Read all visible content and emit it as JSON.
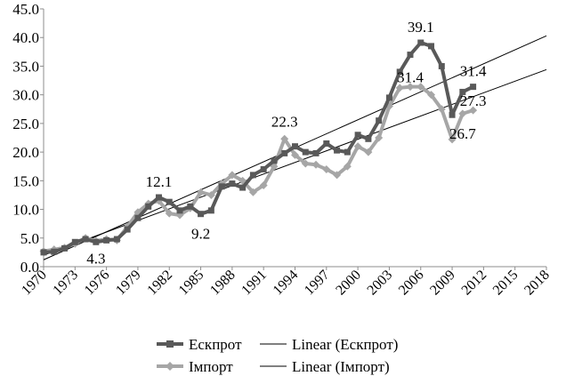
{
  "chart_data": {
    "type": "line",
    "x": [
      1970,
      1971,
      1972,
      1973,
      1974,
      1975,
      1976,
      1977,
      1978,
      1979,
      1980,
      1981,
      1982,
      1983,
      1984,
      1985,
      1986,
      1987,
      1988,
      1989,
      1990,
      1991,
      1992,
      1993,
      1994,
      1995,
      1996,
      1997,
      1998,
      1999,
      2000,
      2001,
      2002,
      2003,
      2004,
      2005,
      2006,
      2007,
      2008,
      2009,
      2010,
      2011
    ],
    "xlim": [
      1970,
      2018
    ],
    "x_ticks": [
      "1970",
      "1973",
      "1976",
      "1979",
      "1982",
      "1985",
      "1988",
      "1991",
      "1994",
      "1997",
      "2000",
      "2003",
      "2006",
      "2009",
      "2012",
      "2015",
      "2018"
    ],
    "ylim": [
      0,
      45
    ],
    "y_ticks": [
      "0.0",
      "5.0",
      "10.0",
      "15.0",
      "20.0",
      "25.0",
      "30.0",
      "35.0",
      "40.0",
      "45.0"
    ],
    "grid": false,
    "legend_position": "bottom",
    "series": [
      {
        "name": "Ескпрот",
        "color": "#595959",
        "marker": "square",
        "values": [
          2.5,
          2.6,
          3.2,
          4.3,
          4.8,
          4.3,
          4.6,
          4.8,
          6.5,
          8.5,
          10.5,
          12.1,
          11.3,
          9.8,
          10.5,
          9.2,
          9.8,
          14.0,
          14.5,
          13.8,
          16.0,
          17.0,
          18.5,
          19.8,
          21.0,
          20.0,
          19.8,
          21.5,
          20.3,
          20.0,
          23.0,
          22.3,
          25.5,
          29.5,
          34.0,
          37.0,
          39.1,
          38.5,
          35.0,
          26.5,
          30.5,
          31.4
        ]
      },
      {
        "name": "Імпорт",
        "color": "#a6a6a6",
        "marker": "diamond",
        "values": [
          2.7,
          3.0,
          3.3,
          4.0,
          5.0,
          4.5,
          4.8,
          4.6,
          7.0,
          9.5,
          11.0,
          11.5,
          9.3,
          9.0,
          10.2,
          13.0,
          12.5,
          14.5,
          16.0,
          15.0,
          13.0,
          14.2,
          17.5,
          22.3,
          19.5,
          18.0,
          17.8,
          17.0,
          16.0,
          17.5,
          21.0,
          20.0,
          22.5,
          28.0,
          31.2,
          31.4,
          31.4,
          30.0,
          27.5,
          22.2,
          26.7,
          27.3
        ]
      }
    ],
    "trendlines": [
      {
        "name": "Linear (Ескпрот)",
        "y_start": 1.2,
        "y_end": 40.3
      },
      {
        "name": "Linear (Імпорт)",
        "y_start": 2.0,
        "y_end": 34.4
      }
    ],
    "annotations": [
      {
        "text": "4.3",
        "series": 0,
        "x": 1975
      },
      {
        "text": "12.1",
        "series": 0,
        "x": 1981
      },
      {
        "text": "9.2",
        "series": 0,
        "x": 1985
      },
      {
        "text": "22.3",
        "series": 1,
        "x": 1993
      },
      {
        "text": "39.1",
        "series": 0,
        "x": 2006
      },
      {
        "text": "31.4",
        "series": 1,
        "x": 2005
      },
      {
        "text": "31.4",
        "series": 0,
        "x": 2011
      },
      {
        "text": "27.3",
        "series": 1,
        "x": 2011
      },
      {
        "text": "26.7",
        "series": 1,
        "x": 2010
      }
    ]
  }
}
